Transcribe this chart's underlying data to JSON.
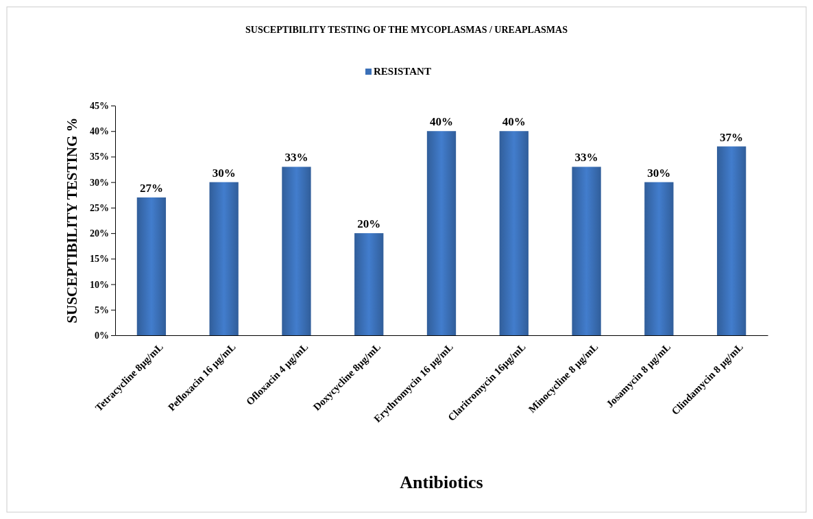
{
  "chart_data": {
    "type": "bar",
    "title": "SUSCEPTIBILITY TESTING OF THE MYCOPLASMAS / UREAPLASMAS",
    "xlabel": "Antibiotics",
    "ylabel": "SUSCEPTIBILITY TESTING %",
    "categories": [
      "Tetracycline 8µg/mL",
      "Pefloxacin 16 µg/mL",
      "Ofloxacin  4 µg/mL",
      "Doxycycline  8µg/mL",
      "Erythromycin  16 µg/mL",
      "Claritromycin  16µg/mL",
      "Minocycline  8 µg/mL",
      "Josamycin 8 µg/mL",
      "Clindamycin  8 µg/mL"
    ],
    "series": [
      {
        "name": "RESISTANT",
        "color": "#3b70b8",
        "values": [
          27,
          30,
          33,
          20,
          40,
          40,
          33,
          30,
          37
        ],
        "value_labels": [
          "27%",
          "30%",
          "33%",
          "20%",
          "40%",
          "40%",
          "33%",
          "30%",
          "37%"
        ]
      }
    ],
    "ylim": [
      0,
      45
    ],
    "yticks": [
      {
        "value": 0,
        "label": "0%"
      },
      {
        "value": 5,
        "label": "5%"
      },
      {
        "value": 10,
        "label": "10%"
      },
      {
        "value": 15,
        "label": "15%"
      },
      {
        "value": 20,
        "label": "20%"
      },
      {
        "value": 25,
        "label": "25%"
      },
      {
        "value": 30,
        "label": "30%"
      },
      {
        "value": 35,
        "label": "35%"
      },
      {
        "value": 40,
        "label": "40%"
      },
      {
        "value": 45,
        "label": "45%"
      }
    ],
    "legend": "top"
  }
}
